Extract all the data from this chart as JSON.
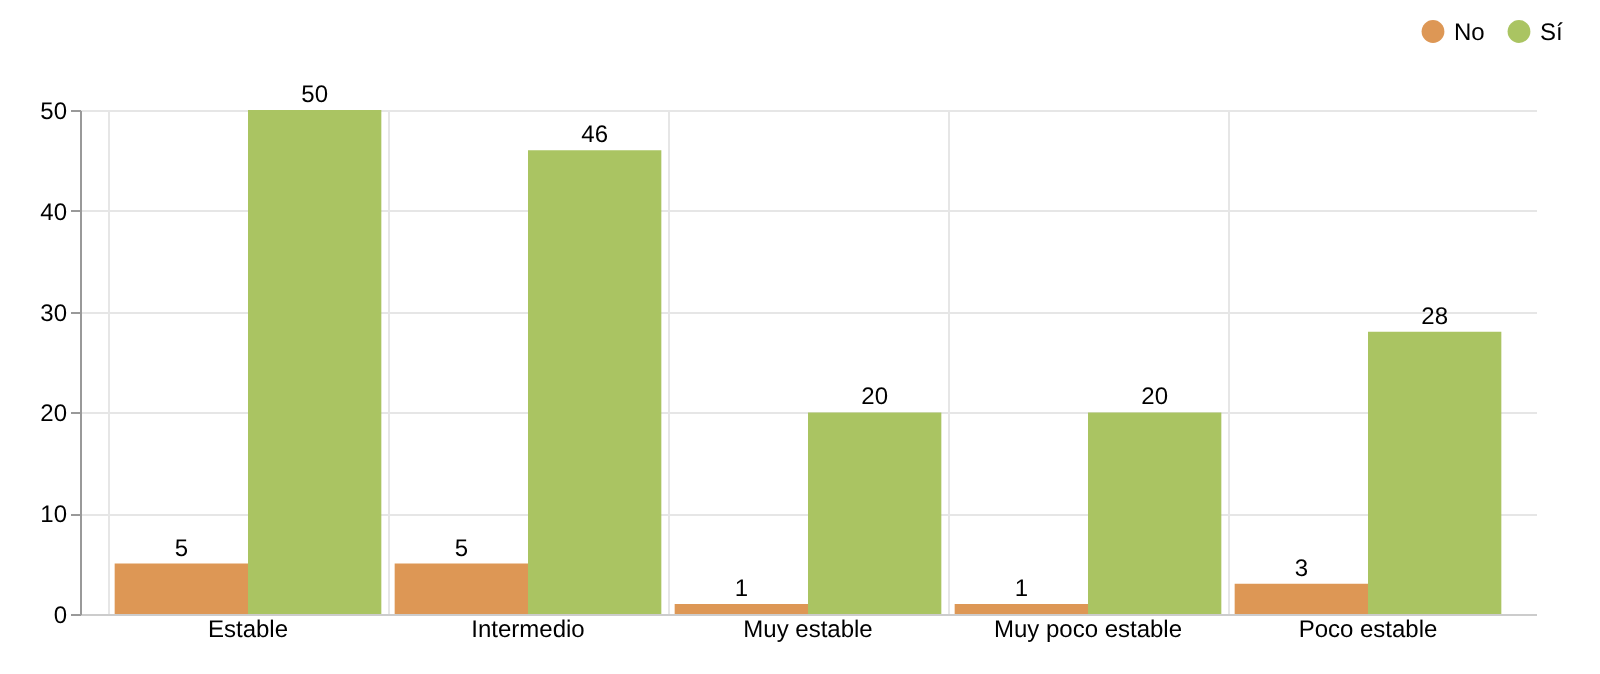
{
  "chart_data": {
    "type": "bar",
    "categories": [
      "Estable",
      "Intermedio",
      "Muy estable",
      "Muy poco estable",
      "Poco estable"
    ],
    "series": [
      {
        "name": "No",
        "color": "#dd9755",
        "values": [
          5,
          5,
          1,
          1,
          3
        ]
      },
      {
        "name": "Sí",
        "color": "#aac462",
        "values": [
          50,
          46,
          20,
          20,
          28
        ]
      }
    ],
    "ylim": [
      0,
      50
    ],
    "yticks": [
      0,
      10,
      20,
      30,
      40,
      50
    ],
    "grid": true,
    "legend": "top right",
    "data_labels": true
  }
}
